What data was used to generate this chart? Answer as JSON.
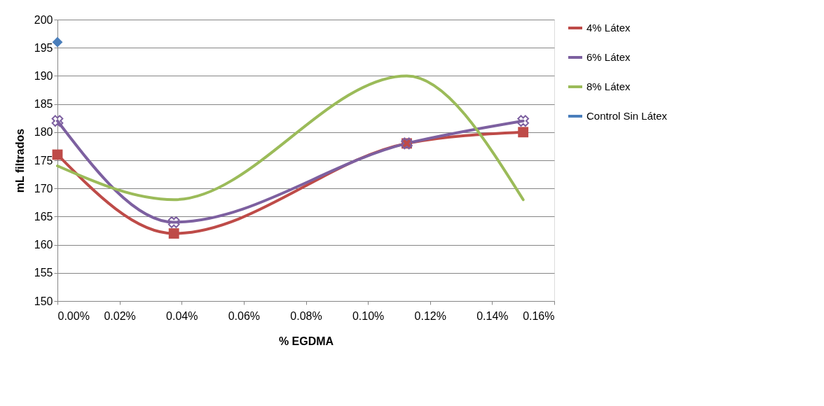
{
  "chart_data": {
    "type": "line",
    "xlabel": "% EGDMA",
    "ylabel": "mL filtrados",
    "x": [
      0,
      0.0375,
      0.1125,
      0.15
    ],
    "series": [
      {
        "name": "4% Látex",
        "color": "#be4b48",
        "marker": "square",
        "values": [
          176,
          162,
          178,
          180
        ]
      },
      {
        "name": "6% Látex",
        "color": "#7d60a0",
        "marker": "cross",
        "values": [
          182,
          164,
          178,
          182
        ]
      },
      {
        "name": "8% Látex",
        "color": "#9bbb59",
        "marker": "none",
        "values": [
          174,
          168,
          190,
          168
        ]
      },
      {
        "name": "Control Sin Látex",
        "color": "#4a7ebb",
        "marker": "diamond",
        "x": [
          0
        ],
        "values": [
          196
        ]
      }
    ],
    "xlim": [
      0,
      0.16
    ],
    "xticks": [
      {
        "value": 0,
        "label": "0.00%"
      },
      {
        "value": 0.02,
        "label": "0.02%"
      },
      {
        "value": 0.04,
        "label": "0.04%"
      },
      {
        "value": 0.06,
        "label": "0.06%"
      },
      {
        "value": 0.08,
        "label": "0.08%"
      },
      {
        "value": 0.1,
        "label": "0.10%"
      },
      {
        "value": 0.12,
        "label": "0.12%"
      },
      {
        "value": 0.14,
        "label": "0.14%"
      },
      {
        "value": 0.16,
        "label": "0.16%"
      }
    ],
    "ylim": [
      150,
      200
    ],
    "yticks": [
      150,
      155,
      160,
      165,
      170,
      175,
      180,
      185,
      190,
      195,
      200
    ],
    "grid": "y",
    "legend": "right",
    "line_style": "solid"
  }
}
